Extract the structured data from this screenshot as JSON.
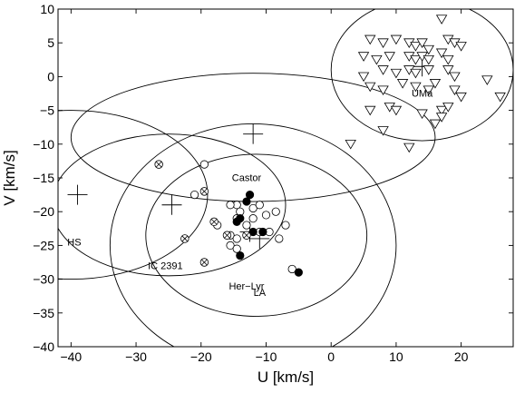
{
  "chart_data": {
    "type": "scatter",
    "title": "",
    "xlabel": "U [km/s]",
    "ylabel": "V [km/s]",
    "xlim": [
      -42,
      28
    ],
    "ylim": [
      -40,
      10
    ],
    "xticks": [
      -40,
      -30,
      -20,
      -10,
      0,
      10,
      20
    ],
    "yticks": [
      10,
      5,
      0,
      -5,
      -10,
      -15,
      -20,
      -25,
      -30,
      -35,
      -40
    ],
    "grid": false,
    "legend": "none",
    "colors": {
      "marker": "#000000",
      "background": "#ffffff"
    },
    "ellipses": [
      {
        "cx": 14,
        "cy": 1,
        "rx": 14,
        "ry": 10.5
      },
      {
        "cx": -12,
        "cy": -9,
        "rx": 28,
        "ry": 9.5
      },
      {
        "cx": -40,
        "cy": -17.5,
        "rx": 21,
        "ry": 12.5
      },
      {
        "cx": -25,
        "cy": -19,
        "rx": 18,
        "ry": 10.5
      },
      {
        "cx": -11.5,
        "cy": -23.5,
        "rx": 17,
        "ry": 12
      },
      {
        "cx": -12,
        "cy": -25,
        "rx": 22,
        "ry": 18
      }
    ],
    "cluster_centers": [
      {
        "x": 14,
        "y": 1.5
      },
      {
        "x": -12,
        "y": -8.5
      },
      {
        "x": -39,
        "y": -17.5
      },
      {
        "x": -24.5,
        "y": -19
      },
      {
        "x": -12.5,
        "y": -23
      },
      {
        "x": -11,
        "y": -24
      }
    ],
    "annotations": [
      {
        "text": "UMa",
        "x": 14,
        "y": -3
      },
      {
        "text": "Castor",
        "x": -13,
        "y": -15.5
      },
      {
        "text": "HS",
        "x": -39.5,
        "y": -25
      },
      {
        "text": "IC 2391",
        "x": -25.5,
        "y": -28.5
      },
      {
        "text": "Her−Lyr",
        "x": -13,
        "y": -31.5
      },
      {
        "text": "LA",
        "x": -11,
        "y": -32.5
      }
    ],
    "series": [
      {
        "marker": "triangle-down-open",
        "points": [
          [
            6,
            5.5
          ],
          [
            8,
            5
          ],
          [
            10,
            5.5
          ],
          [
            12,
            5
          ],
          [
            13,
            4.5
          ],
          [
            14,
            5
          ],
          [
            15,
            4
          ],
          [
            18,
            5.5
          ],
          [
            19,
            5
          ],
          [
            20,
            4.5
          ],
          [
            17,
            8.5
          ],
          [
            5,
            3
          ],
          [
            7,
            2.5
          ],
          [
            9,
            3
          ],
          [
            12,
            3
          ],
          [
            13,
            2.5
          ],
          [
            14,
            3
          ],
          [
            15,
            2.5
          ],
          [
            17,
            3.5
          ],
          [
            18,
            2.5
          ],
          [
            5,
            0
          ],
          [
            8,
            1
          ],
          [
            10,
            0.5
          ],
          [
            12,
            1
          ],
          [
            13,
            0.5
          ],
          [
            15,
            1
          ],
          [
            18,
            1
          ],
          [
            19,
            0
          ],
          [
            6,
            -1.5
          ],
          [
            8,
            -2
          ],
          [
            11,
            -1
          ],
          [
            13,
            -1.5
          ],
          [
            15,
            -2
          ],
          [
            16,
            -1
          ],
          [
            19,
            -2
          ],
          [
            24,
            -0.5
          ],
          [
            6,
            -5
          ],
          [
            9,
            -4.5
          ],
          [
            10,
            -5
          ],
          [
            14,
            -5.5
          ],
          [
            17,
            -5
          ],
          [
            18,
            -4.5
          ],
          [
            20,
            -3
          ],
          [
            26,
            -3
          ],
          [
            3,
            -10
          ],
          [
            8,
            -8
          ],
          [
            12,
            -10.5
          ],
          [
            16,
            -7
          ],
          [
            17,
            -6
          ]
        ]
      },
      {
        "marker": "circle-open",
        "points": [
          [
            -21,
            -17.5
          ],
          [
            -19.5,
            -13
          ],
          [
            -14.5,
            -19
          ],
          [
            -15.5,
            -19
          ],
          [
            -14,
            -20
          ],
          [
            -14.5,
            -21
          ],
          [
            -12,
            -19.5
          ],
          [
            -11,
            -19
          ],
          [
            -10,
            -20.5
          ],
          [
            -8.5,
            -20
          ],
          [
            -12,
            -21
          ],
          [
            -13,
            -22
          ],
          [
            -11,
            -23
          ],
          [
            -9.5,
            -23
          ],
          [
            -7,
            -22
          ],
          [
            -17.5,
            -22
          ],
          [
            -15.5,
            -23.5
          ],
          [
            -14.5,
            -24
          ],
          [
            -15.5,
            -25
          ],
          [
            -8,
            -24
          ],
          [
            -6,
            -28.5
          ],
          [
            -14.5,
            -25.5
          ]
        ]
      },
      {
        "marker": "circle-filled",
        "points": [
          [
            -12.5,
            -17.5
          ],
          [
            -13,
            -18.5
          ],
          [
            -14,
            -21
          ],
          [
            -14.5,
            -21.5
          ],
          [
            -12,
            -23
          ],
          [
            -10.5,
            -23
          ],
          [
            -14,
            -26.5
          ],
          [
            -5,
            -29
          ]
        ]
      },
      {
        "marker": "circle-x",
        "points": [
          [
            -26.5,
            -13
          ],
          [
            -19.5,
            -17
          ],
          [
            -18,
            -21.5
          ],
          [
            -22.5,
            -24
          ],
          [
            -16,
            -23.5
          ],
          [
            -13,
            -23.5
          ],
          [
            -19.5,
            -27.5
          ]
        ]
      }
    ]
  }
}
